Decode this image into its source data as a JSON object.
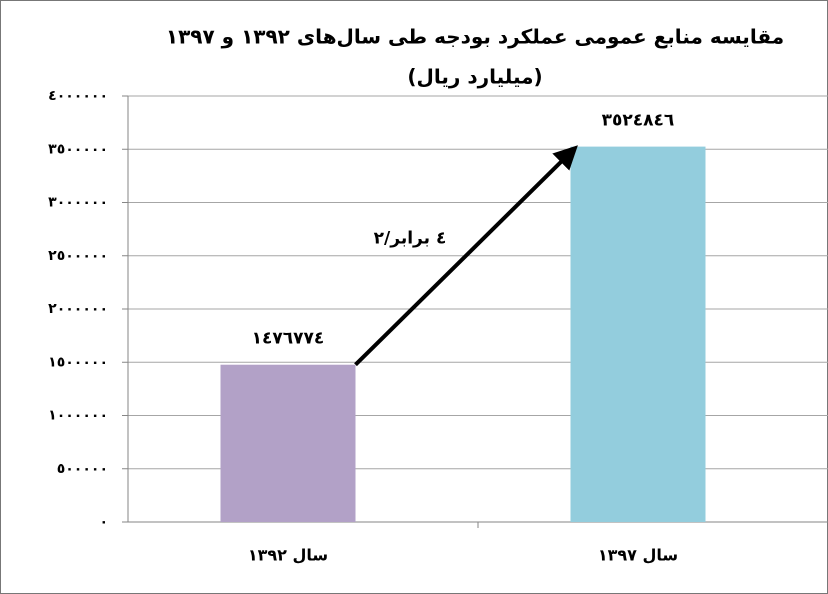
{
  "chart_data": {
    "type": "bar",
    "title": "مقایسه منابع عمومی عملکرد بودجه طی سال‌های ۱۳۹۲ و ۱۳۹۷",
    "subtitle": "(میلیارد ریال)",
    "annotation": "۲/٤ برابر",
    "categories": [
      "سال ۱۳۹۲",
      "سال ۱۳۹۷"
    ],
    "values": [
      1476774,
      3524846
    ],
    "value_labels": [
      "١٤٧٦٧٧٤",
      "٣٥٢٤٨٤٦"
    ],
    "colors": [
      "#b2a1c7",
      "#93cddd"
    ],
    "ylim": [
      0,
      4000000
    ],
    "yticks": [
      {
        "value": 0,
        "label": "٠"
      },
      {
        "value": 500000,
        "label": "٥٠٠٠٠٠"
      },
      {
        "value": 1000000,
        "label": "١٠٠٠٠٠٠"
      },
      {
        "value": 1500000,
        "label": "١٥٠٠٠٠٠"
      },
      {
        "value": 2000000,
        "label": "٢٠٠٠٠٠٠"
      },
      {
        "value": 2500000,
        "label": "٢٥٠٠٠٠٠"
      },
      {
        "value": 3000000,
        "label": "٣٠٠٠٠٠٠"
      },
      {
        "value": 3500000,
        "label": "٣٥٠٠٠٠٠"
      },
      {
        "value": 4000000,
        "label": "٤٠٠٠٠٠٠"
      }
    ],
    "grid": true
  }
}
